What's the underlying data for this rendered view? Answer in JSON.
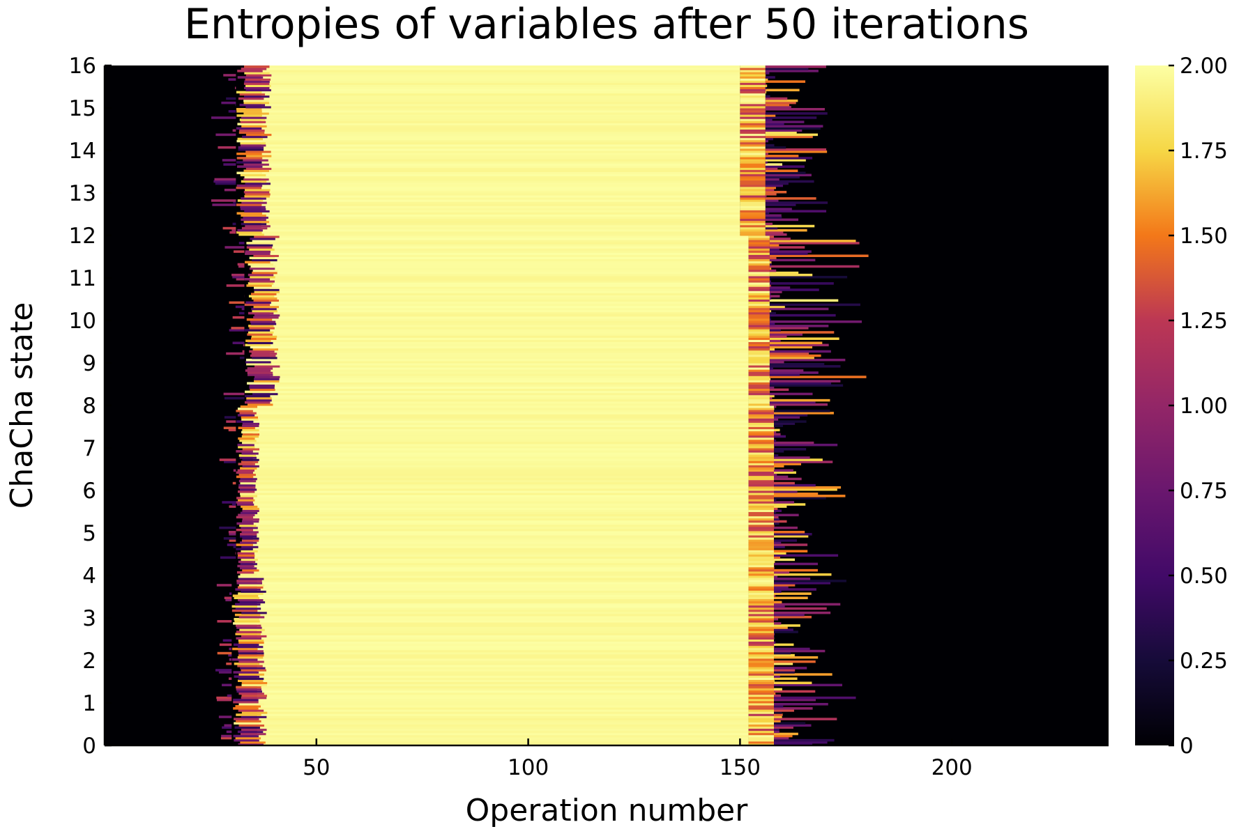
{
  "chart_data": {
    "type": "heatmap",
    "title": "Entropies of variables after 50 iterations",
    "xlabel": "Operation number",
    "ylabel": "ChaCha state",
    "xlim": [
      0,
      237
    ],
    "ylim": [
      0,
      16
    ],
    "x_ticks": [
      50,
      100,
      150,
      200
    ],
    "x_tick_labels": [
      "50",
      "100",
      "150",
      "200"
    ],
    "y_ticks": [
      0,
      1,
      2,
      3,
      4,
      5,
      6,
      7,
      8,
      9,
      10,
      11,
      12,
      13,
      14,
      15,
      16
    ],
    "y_tick_labels": [
      "0",
      "1",
      "2",
      "3",
      "4",
      "5",
      "6",
      "7",
      "8",
      "9",
      "10",
      "11",
      "12",
      "13",
      "14",
      "15",
      "16"
    ],
    "colorscale": "inferno",
    "colorbar_range": [
      0,
      2
    ],
    "colorbar_ticks": [
      0,
      0.25,
      0.5,
      0.75,
      1.0,
      1.25,
      1.5,
      1.75,
      2.0
    ],
    "colorbar_tick_labels": [
      "0",
      "0.25",
      "0.50",
      "0.75",
      "1.00",
      "1.25",
      "1.50",
      "1.75",
      "2.00"
    ],
    "grid": false,
    "state_groups": [
      {
        "rows": [
          0,
          4
        ],
        "pre_noise_x": [
          26,
          30
        ],
        "ramp_x": [
          30,
          36
        ],
        "plateau_x": [
          36,
          152
        ],
        "post_ramp_x": [
          152,
          158
        ],
        "post_noise_x": [
          158,
          178
        ]
      },
      {
        "rows": [
          4,
          8
        ],
        "pre_noise_x": [
          27,
          31
        ],
        "ramp_x": [
          31,
          35
        ],
        "plateau_x": [
          35,
          152
        ],
        "post_ramp_x": [
          152,
          158
        ],
        "post_noise_x": [
          158,
          175
        ]
      },
      {
        "rows": [
          8,
          12
        ],
        "pre_noise_x": [
          28,
          33
        ],
        "ramp_x": [
          33,
          39
        ],
        "plateau_x": [
          39,
          152
        ],
        "post_ramp_x": [
          152,
          157
        ],
        "post_noise_x": [
          157,
          181
        ]
      },
      {
        "rows": [
          12,
          16
        ],
        "pre_noise_x": [
          25,
          31
        ],
        "ramp_x": [
          31,
          37
        ],
        "plateau_x": [
          37,
          150
        ],
        "post_ramp_x": [
          150,
          156
        ],
        "post_noise_x": [
          156,
          171
        ]
      }
    ],
    "plateau_value": 2.0,
    "background_value": 0.0
  }
}
